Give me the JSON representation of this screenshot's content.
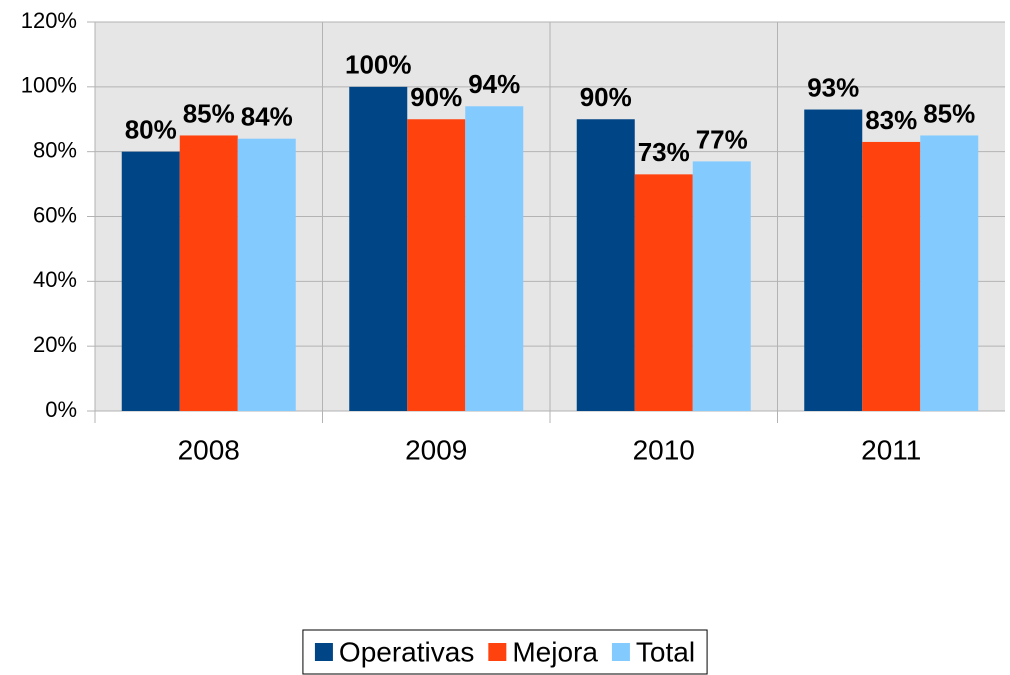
{
  "chart_data": {
    "type": "bar",
    "categories": [
      "2008",
      "2009",
      "2010",
      "2011"
    ],
    "series": [
      {
        "name": "Operativas",
        "color": "#004586",
        "values": [
          80,
          100,
          90,
          93
        ],
        "value_labels": [
          "80%",
          "100%",
          "90%",
          "93%"
        ]
      },
      {
        "name": "Mejora",
        "color": "#ff420e",
        "values": [
          85,
          90,
          73,
          83
        ],
        "value_labels": [
          "85%",
          "90%",
          "73%",
          "83%"
        ]
      },
      {
        "name": "Total",
        "color": "#83caff",
        "values": [
          84,
          94,
          77,
          85
        ],
        "value_labels": [
          "84%",
          "94%",
          "77%",
          "85%"
        ]
      }
    ],
    "ylim": [
      0,
      120
    ],
    "yticks": [
      {
        "value": 0,
        "label": "0%"
      },
      {
        "value": 20,
        "label": "20%"
      },
      {
        "value": 40,
        "label": "40%"
      },
      {
        "value": 60,
        "label": "60%"
      },
      {
        "value": 80,
        "label": "80%"
      },
      {
        "value": 100,
        "label": "100%"
      },
      {
        "value": 120,
        "label": "120%"
      }
    ],
    "grid": true,
    "legend": "bottom"
  }
}
